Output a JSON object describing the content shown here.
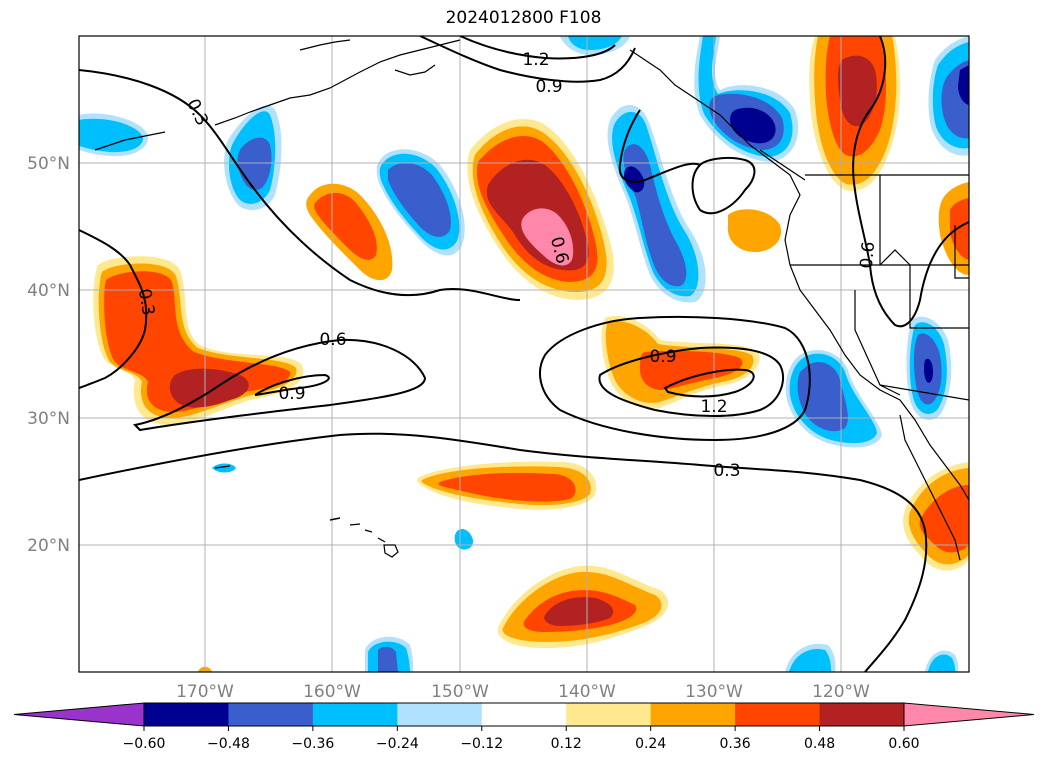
{
  "title": "2024012800 F108",
  "lat_labels": [
    "50°N",
    "40°N",
    "30°N",
    "20°N"
  ],
  "lon_labels": [
    "170°W",
    "160°W",
    "150°W",
    "140°W",
    "130°W",
    "120°W"
  ],
  "contour_labels": [
    "1.2",
    "0.9",
    "0.3",
    "0.3",
    "0.6",
    "0.9",
    "0.6",
    "0.9",
    "1.2",
    "0.3",
    "0.6"
  ],
  "colorbar": {
    "colors": [
      "#9933cc",
      "#000090",
      "#3a5fcd",
      "#00bfff",
      "#b0e2ff",
      "#ffffff",
      "#ffe88e",
      "#ffa500",
      "#ff4500",
      "#b22222",
      "#ff88aa"
    ],
    "ticks": [
      "−0.60",
      "−0.48",
      "−0.36",
      "−0.24",
      "−0.12",
      "0.12",
      "0.24",
      "0.36",
      "0.48",
      "0.60"
    ]
  },
  "palette": {
    "pink": "#ff88aa",
    "red": "#b22222",
    "orangered": "#ff4500",
    "orange": "#ffa500",
    "yellow": "#ffe88e",
    "lightblue": "#b0e2ff",
    "cyan": "#00bfff",
    "blue": "#3a5fcd",
    "navy": "#000090"
  }
}
